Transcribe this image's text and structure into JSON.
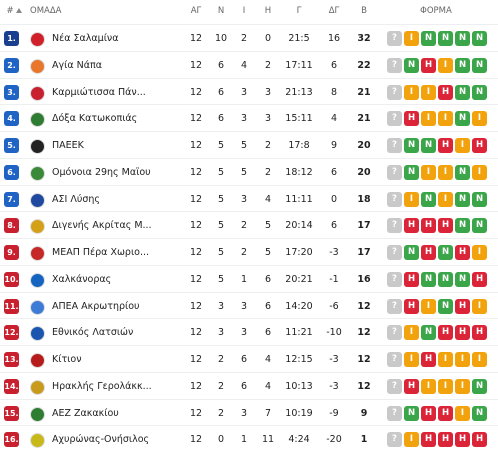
{
  "header": {
    "rank": "#",
    "team": "ΟΜΑΔΑ",
    "played": "ΑΓ",
    "won": "Ν",
    "drawn": "Ι",
    "lost": "Η",
    "goals": "Γ",
    "goal_diff": "ΔΓ",
    "points": "Β",
    "form": "ΦΟΡΜΑ"
  },
  "table": {
    "rows": [
      {
        "rank": "1.",
        "team": "Νέα Σαλαμίνα",
        "played": 12,
        "won": 10,
        "drawn": 2,
        "lost": 0,
        "goals": "21:5",
        "goal_diff": 16,
        "points": 32,
        "form": [
          "?",
          "I",
          "N",
          "N",
          "N",
          "N"
        ],
        "badge_color": "#1b3f8f"
      },
      {
        "rank": "2.",
        "team": "Αγία Νάπα",
        "played": 12,
        "won": 6,
        "drawn": 4,
        "lost": 2,
        "goals": "17:11",
        "goal_diff": 6,
        "points": 22,
        "form": [
          "?",
          "N",
          "H",
          "I",
          "N",
          "N"
        ],
        "badge_color": "#1f63c4"
      },
      {
        "rank": "3.",
        "team": "Καρμιώτισσα Πάν...",
        "played": 12,
        "won": 6,
        "drawn": 3,
        "lost": 3,
        "goals": "21:13",
        "goal_diff": 8,
        "points": 21,
        "form": [
          "?",
          "I",
          "I",
          "H",
          "N",
          "N"
        ],
        "badge_color": "#1f63c4"
      },
      {
        "rank": "4.",
        "team": "Δόξα Κατωκοπιάς",
        "played": 12,
        "won": 6,
        "drawn": 3,
        "lost": 3,
        "goals": "15:11",
        "goal_diff": 4,
        "points": 21,
        "form": [
          "?",
          "H",
          "I",
          "I",
          "N",
          "I"
        ],
        "badge_color": "#1f63c4"
      },
      {
        "rank": "5.",
        "team": "ΠΑΕΕΚ",
        "played": 12,
        "won": 5,
        "drawn": 5,
        "lost": 2,
        "goals": "17:8",
        "goal_diff": 9,
        "points": 20,
        "form": [
          "?",
          "N",
          "N",
          "H",
          "I",
          "H"
        ],
        "badge_color": "#1f63c4"
      },
      {
        "rank": "6.",
        "team": "Ομόνοια 29ης Μαΐου",
        "played": 12,
        "won": 5,
        "drawn": 5,
        "lost": 2,
        "goals": "18:12",
        "goal_diff": 6,
        "points": 20,
        "form": [
          "?",
          "N",
          "I",
          "I",
          "N",
          "I"
        ],
        "badge_color": "#1f63c4"
      },
      {
        "rank": "7.",
        "team": "ΑΣΙ Λύσης",
        "played": 12,
        "won": 5,
        "drawn": 3,
        "lost": 4,
        "goals": "11:11",
        "goal_diff": 0,
        "points": 18,
        "form": [
          "?",
          "I",
          "N",
          "I",
          "N",
          "N"
        ],
        "badge_color": "#1f63c4"
      },
      {
        "rank": "8.",
        "team": "Διγενής Ακρίτας Μ...",
        "played": 12,
        "won": 5,
        "drawn": 2,
        "lost": 5,
        "goals": "20:14",
        "goal_diff": 6,
        "points": 17,
        "form": [
          "?",
          "H",
          "H",
          "H",
          "N",
          "N"
        ],
        "badge_color": "#c8202e"
      },
      {
        "rank": "9.",
        "team": "ΜΕΑΠ Πέρα Χωριο...",
        "played": 12,
        "won": 5,
        "drawn": 2,
        "lost": 5,
        "goals": "17:20",
        "goal_diff": -3,
        "points": 17,
        "form": [
          "?",
          "N",
          "H",
          "N",
          "H",
          "I"
        ],
        "badge_color": "#c8202e"
      },
      {
        "rank": "10.",
        "team": "Χαλκάνορας",
        "played": 12,
        "won": 5,
        "drawn": 1,
        "lost": 6,
        "goals": "20:21",
        "goal_diff": -1,
        "points": 16,
        "form": [
          "?",
          "H",
          "N",
          "N",
          "N",
          "H"
        ],
        "badge_color": "#c8202e"
      },
      {
        "rank": "11.",
        "team": "ΑΠΕΑ Ακρωτηρίου",
        "played": 12,
        "won": 3,
        "drawn": 3,
        "lost": 6,
        "goals": "14:20",
        "goal_diff": -6,
        "points": 12,
        "form": [
          "?",
          "H",
          "I",
          "N",
          "H",
          "I"
        ],
        "badge_color": "#c8202e"
      },
      {
        "rank": "12.",
        "team": "Εθνικός Λατσιών",
        "played": 12,
        "won": 3,
        "drawn": 3,
        "lost": 6,
        "goals": "11:21",
        "goal_diff": -10,
        "points": 12,
        "form": [
          "?",
          "I",
          "N",
          "H",
          "H",
          "H"
        ],
        "badge_color": "#c8202e"
      },
      {
        "rank": "13.",
        "team": "Κίτιον",
        "played": 12,
        "won": 2,
        "drawn": 6,
        "lost": 4,
        "goals": "12:15",
        "goal_diff": -3,
        "points": 12,
        "form": [
          "?",
          "I",
          "H",
          "I",
          "I",
          "I"
        ],
        "badge_color": "#c8202e"
      },
      {
        "rank": "14.",
        "team": "Ηρακλής Γερολάκκ...",
        "played": 12,
        "won": 2,
        "drawn": 6,
        "lost": 4,
        "goals": "10:13",
        "goal_diff": -3,
        "points": 12,
        "form": [
          "?",
          "H",
          "I",
          "I",
          "I",
          "N"
        ],
        "badge_color": "#c8202e"
      },
      {
        "rank": "15.",
        "team": "ΑΕΖ Ζακακίου",
        "played": 12,
        "won": 2,
        "drawn": 3,
        "lost": 7,
        "goals": "10:19",
        "goal_diff": -9,
        "points": 9,
        "form": [
          "?",
          "N",
          "H",
          "H",
          "I",
          "N"
        ],
        "badge_color": "#c8202e"
      },
      {
        "rank": "16.",
        "team": "Αχυρώνας-Ονήσιλος",
        "played": 12,
        "won": 0,
        "drawn": 1,
        "lost": 11,
        "goals": "4:24",
        "goal_diff": -20,
        "points": 1,
        "form": [
          "?",
          "I",
          "H",
          "H",
          "H",
          "H"
        ],
        "badge_color": "#c8202e"
      }
    ]
  }
}
